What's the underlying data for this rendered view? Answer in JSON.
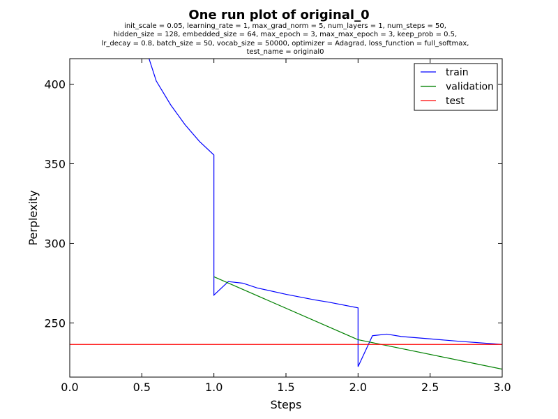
{
  "chart_data": {
    "type": "line",
    "title": "One run plot of original_0",
    "subtitle_lines": [
      "init_scale = 0.05, learning_rate = 1, max_grad_norm = 5, num_layers = 1, num_steps = 50,",
      "hidden_size = 128, embedded_size = 64, max_epoch = 3, max_max_epoch = 3, keep_prob = 0.5,",
      "lr_decay = 0.8, batch_size = 50, vocab_size = 50000, optimizer = Adagrad, loss_function = full_softmax,",
      "test_name = original0"
    ],
    "xlabel": "Steps",
    "ylabel": "Perplexity",
    "xlim": [
      0.0,
      3.0
    ],
    "ylim": [
      216,
      416
    ],
    "xticks": [
      0.0,
      0.5,
      1.0,
      1.5,
      2.0,
      2.5,
      3.0
    ],
    "xtick_labels": [
      "0.0",
      "0.5",
      "1.0",
      "1.5",
      "2.0",
      "2.5",
      "3.0"
    ],
    "yticks": [
      250,
      300,
      350,
      400
    ],
    "ytick_labels": [
      "250",
      "300",
      "350",
      "400"
    ],
    "grid": false,
    "legend_position": "top-right",
    "series": [
      {
        "name": "train",
        "color": "#0000ff",
        "points": [
          [
            0.5,
            430
          ],
          [
            0.6,
            402
          ],
          [
            0.7,
            387
          ],
          [
            0.8,
            374.5
          ],
          [
            0.9,
            364
          ],
          [
            1.0,
            355.5
          ],
          [
            1.0,
            267.5
          ],
          [
            1.1,
            276
          ],
          [
            1.2,
            275
          ],
          [
            1.3,
            272
          ],
          [
            1.5,
            268
          ],
          [
            1.7,
            264.5
          ],
          [
            1.8,
            263
          ],
          [
            2.0,
            259.5
          ],
          [
            2.0,
            222.5
          ],
          [
            2.1,
            242
          ],
          [
            2.2,
            243
          ],
          [
            2.3,
            241.5
          ],
          [
            2.5,
            240
          ],
          [
            2.7,
            238.5
          ],
          [
            3.0,
            236.5
          ]
        ]
      },
      {
        "name": "validation",
        "color": "#008000",
        "points": [
          [
            1.0,
            279
          ],
          [
            2.0,
            239.5
          ],
          [
            3.0,
            221
          ]
        ]
      },
      {
        "name": "test",
        "color": "#ff0000",
        "points": [
          [
            0.0,
            236.5
          ],
          [
            3.0,
            236.5
          ]
        ]
      }
    ]
  }
}
